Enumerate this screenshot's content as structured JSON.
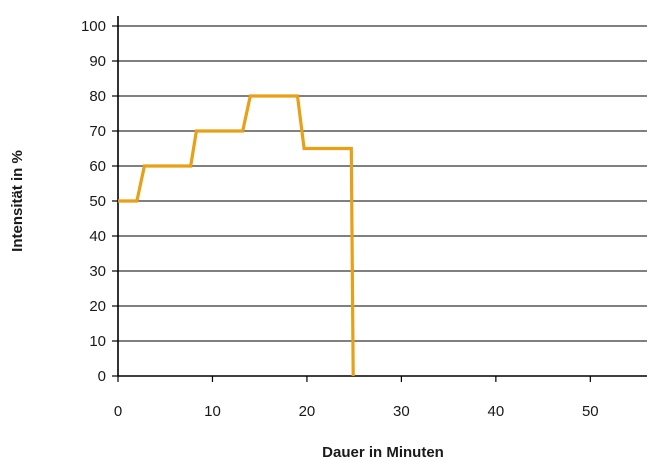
{
  "chart_data": {
    "type": "line",
    "title": "",
    "xlabel": "Dauer in Minuten",
    "ylabel": "Intensität in %",
    "xlim": [
      0,
      56
    ],
    "ylim": [
      0,
      100
    ],
    "x_ticks": [
      0,
      10,
      20,
      30,
      40,
      50
    ],
    "y_ticks": [
      0,
      10,
      20,
      30,
      40,
      50,
      60,
      70,
      80,
      90,
      100
    ],
    "grid": "horizontal",
    "legend": "none",
    "series": [
      {
        "color": "#E8A016",
        "x": [
          0,
          2,
          2.8,
          7.7,
          8.3,
          13.2,
          14,
          19,
          19.7,
          24.7,
          24.9
        ],
        "y": [
          50,
          50,
          60,
          60,
          70,
          70,
          80,
          80,
          65,
          65,
          0
        ]
      }
    ]
  }
}
